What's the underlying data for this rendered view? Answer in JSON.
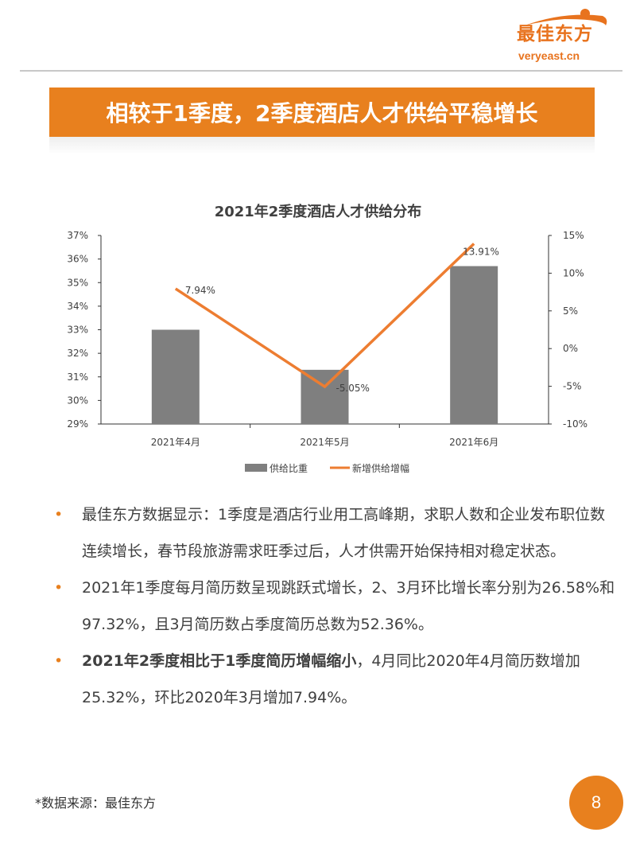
{
  "logo": {
    "cn": "最佳东方",
    "en": "veryeast.cn"
  },
  "banner": "相较于1季度，2季度酒店人才供给平稳增长",
  "chart_data": {
    "type": "bar+line",
    "title": "2021年2季度酒店人才供给分布",
    "categories": [
      "2021年4月",
      "2021年5月",
      "2021年6月"
    ],
    "series": [
      {
        "name": "供给比重",
        "type": "bar",
        "axis": "left",
        "values": [
          33.0,
          31.3,
          35.7
        ],
        "color": "#7f7f7f"
      },
      {
        "name": "新增供给增幅",
        "type": "line",
        "axis": "right",
        "values": [
          7.94,
          -5.05,
          13.91
        ],
        "labels": [
          "7.94%",
          "-5.05%",
          "13.91%"
        ],
        "color": "#ed7d31"
      }
    ],
    "ylim_left": [
      29,
      37
    ],
    "yticks_left": [
      "37%",
      "36%",
      "35%",
      "34%",
      "33%",
      "32%",
      "31%",
      "30%",
      "29%"
    ],
    "ylim_right": [
      -10,
      15
    ],
    "yticks_right": [
      "15%",
      "10%",
      "5%",
      "0%",
      "-5%",
      "-10%"
    ],
    "legend": "bottom"
  },
  "bullets": [
    {
      "bold": "",
      "text": "最佳东方数据显示：1季度是酒店行业用工高峰期，求职人数和企业发布职位数连续增长，春节段旅游需求旺季过后，人才供需开始保持相对稳定状态。"
    },
    {
      "bold": "",
      "text": "2021年1季度每月简历数呈现跳跃式增长，2、3月环比增长率分别为26.58%和97.32%，且3月简历数占季度简历总数为52.36%。"
    },
    {
      "bold": "2021年2季度相比于1季度简历增幅缩小",
      "text": "，4月同比2020年4月简历数增加25.32%，环比2020年3月增加7.94%。"
    }
  ],
  "bullet_symbol": "•",
  "source": "*数据来源：最佳东方",
  "page_number": "8"
}
